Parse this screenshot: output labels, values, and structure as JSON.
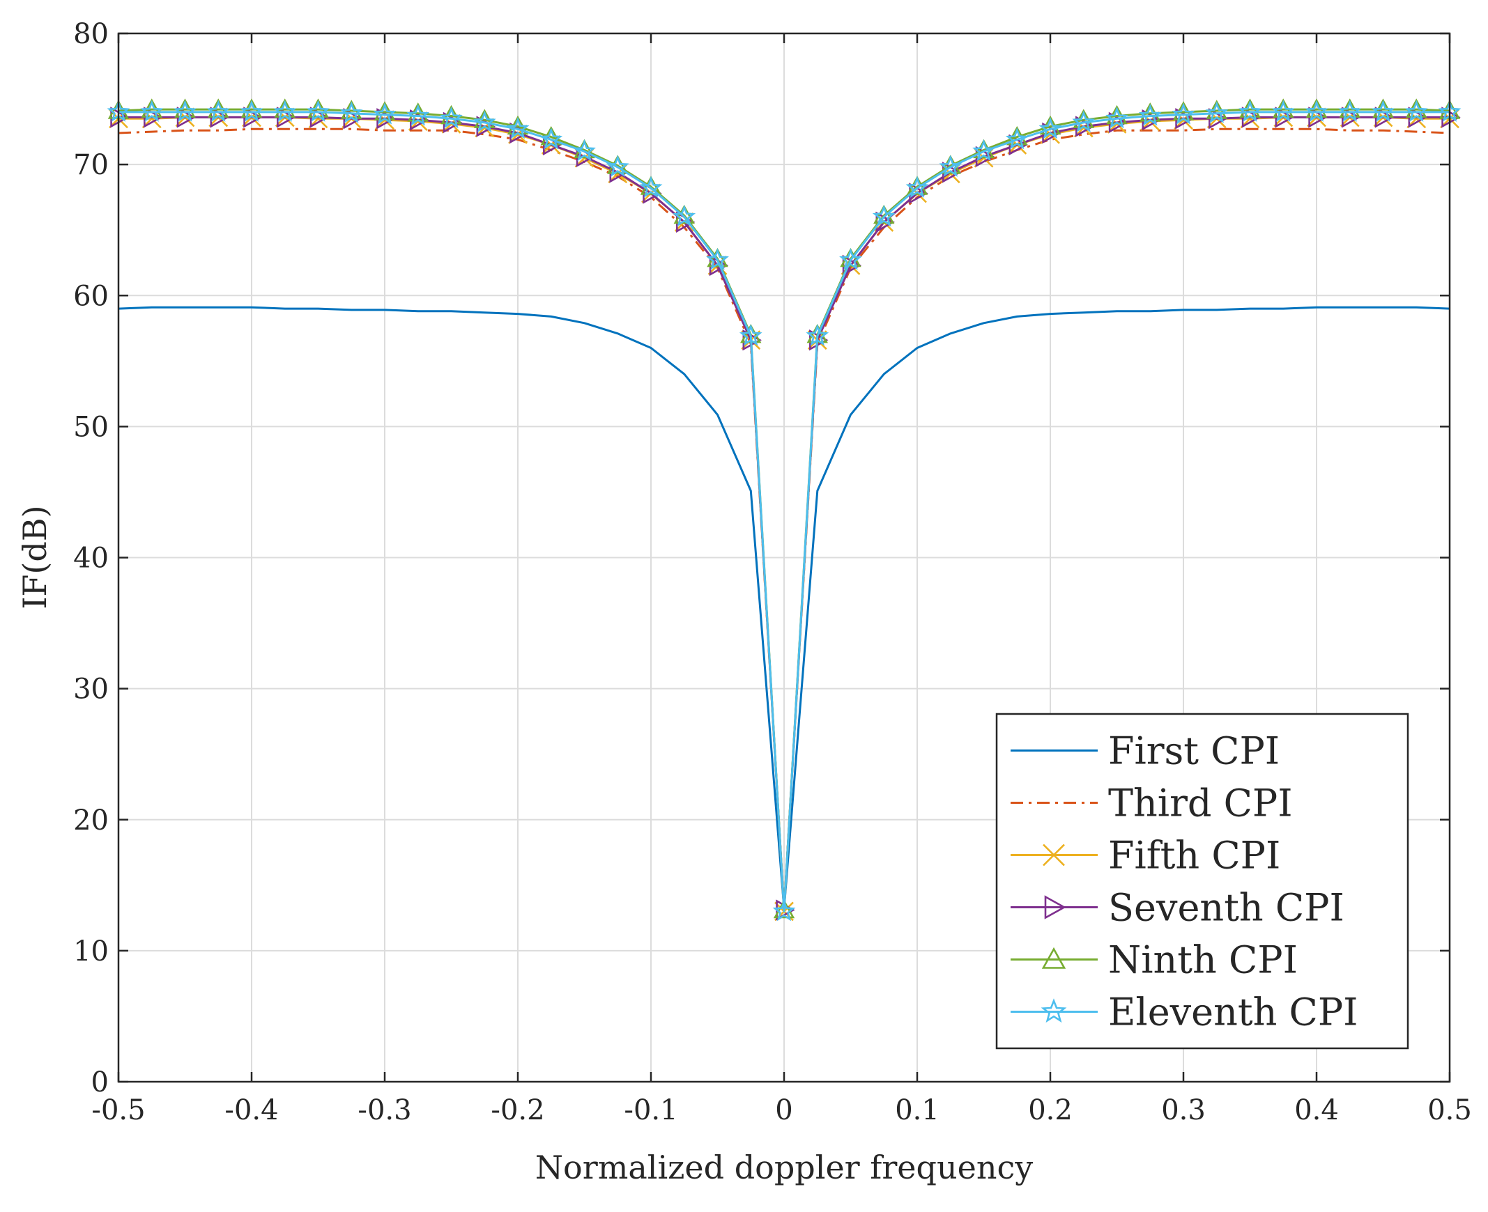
{
  "chart_data": {
    "type": "line",
    "xlabel": "Normalized doppler frequency",
    "ylabel": "IF(dB)",
    "xlim": [
      -0.5,
      0.5
    ],
    "ylim": [
      0,
      80
    ],
    "xticks": [
      -0.5,
      -0.4,
      -0.3,
      -0.2,
      -0.1,
      0,
      0.1,
      0.2,
      0.3,
      0.4,
      0.5
    ],
    "xtick_labels": [
      "-0.5",
      "-0.4",
      "-0.3",
      "-0.2",
      "-0.1",
      "0",
      "0.1",
      "0.2",
      "0.3",
      "0.4",
      "0.5"
    ],
    "yticks": [
      0,
      10,
      20,
      30,
      40,
      50,
      60,
      70,
      80
    ],
    "ytick_labels": [
      "0",
      "10",
      "20",
      "30",
      "40",
      "50",
      "60",
      "70",
      "80"
    ],
    "grid": true,
    "legend_position": "bottom-right",
    "x": [
      -0.5,
      -0.475,
      -0.45,
      -0.425,
      -0.4,
      -0.375,
      -0.35,
      -0.325,
      -0.3,
      -0.275,
      -0.25,
      -0.225,
      -0.2,
      -0.175,
      -0.15,
      -0.125,
      -0.1,
      -0.075,
      -0.05,
      -0.025,
      0,
      0.025,
      0.05,
      0.075,
      0.1,
      0.125,
      0.15,
      0.175,
      0.2,
      0.225,
      0.25,
      0.275,
      0.3,
      0.325,
      0.35,
      0.375,
      0.4,
      0.425,
      0.45,
      0.475,
      0.5
    ],
    "series": [
      {
        "name": "First CPI",
        "color": "#0072BD",
        "dash": "solid",
        "marker": "none",
        "values": [
          59,
          59.1,
          59.1,
          59.1,
          59.1,
          59.0,
          59.0,
          58.9,
          58.9,
          58.8,
          58.8,
          58.7,
          58.6,
          58.4,
          57.9,
          57.1,
          56.0,
          54.0,
          50.9,
          45.1,
          13.2,
          45.1,
          50.9,
          54.0,
          56.0,
          57.1,
          57.9,
          58.4,
          58.6,
          58.7,
          58.8,
          58.8,
          58.9,
          58.9,
          59.0,
          59.0,
          59.1,
          59.1,
          59.1,
          59.1,
          59
        ]
      },
      {
        "name": "Third CPI",
        "color": "#D95319",
        "dash": "dashdot",
        "marker": "none",
        "values": [
          72.4,
          72.5,
          72.6,
          72.6,
          72.7,
          72.7,
          72.7,
          72.7,
          72.6,
          72.6,
          72.6,
          72.3,
          71.9,
          71.1,
          70.2,
          69.1,
          67.5,
          65.2,
          62.1,
          56.3,
          13.1,
          56.3,
          62.1,
          65.2,
          67.5,
          69.1,
          70.2,
          71.1,
          71.9,
          72.3,
          72.6,
          72.6,
          72.6,
          72.7,
          72.7,
          72.7,
          72.7,
          72.6,
          72.6,
          72.5,
          72.4
        ]
      },
      {
        "name": "Fifth CPI",
        "color": "#EDB120",
        "dash": "solid",
        "marker": "x",
        "values": [
          73.5,
          73.5,
          73.6,
          73.6,
          73.6,
          73.6,
          73.5,
          73.5,
          73.4,
          73.3,
          73.1,
          72.8,
          72.3,
          71.5,
          70.5,
          69.3,
          67.8,
          65.6,
          62.3,
          56.6,
          13.0,
          56.6,
          62.3,
          65.6,
          67.8,
          69.3,
          70.5,
          71.5,
          72.3,
          72.8,
          73.1,
          73.3,
          73.4,
          73.5,
          73.5,
          73.6,
          73.6,
          73.6,
          73.6,
          73.5,
          73.5
        ]
      },
      {
        "name": "Seventh CPI",
        "color": "#7E2F8E",
        "dash": "solid",
        "marker": "triangle-right",
        "values": [
          73.6,
          73.6,
          73.6,
          73.6,
          73.6,
          73.6,
          73.6,
          73.5,
          73.5,
          73.4,
          73.2,
          72.9,
          72.4,
          71.5,
          70.6,
          69.4,
          67.8,
          65.6,
          62.3,
          56.6,
          13.1,
          56.6,
          62.3,
          65.6,
          67.8,
          69.4,
          70.6,
          71.5,
          72.4,
          72.9,
          73.2,
          73.4,
          73.5,
          73.5,
          73.6,
          73.6,
          73.6,
          73.6,
          73.6,
          73.6,
          73.6
        ]
      },
      {
        "name": "Ninth CPI",
        "color": "#77AC30",
        "dash": "solid",
        "marker": "triangle-up",
        "values": [
          74.1,
          74.2,
          74.2,
          74.2,
          74.2,
          74.2,
          74.2,
          74.1,
          74.0,
          73.9,
          73.7,
          73.4,
          72.9,
          72.1,
          71.1,
          69.9,
          68.3,
          66.1,
          62.8,
          57.0,
          13.1,
          57.0,
          62.8,
          66.1,
          68.3,
          69.9,
          71.1,
          72.1,
          72.9,
          73.4,
          73.7,
          73.9,
          74.0,
          74.1,
          74.2,
          74.2,
          74.2,
          74.2,
          74.2,
          74.2,
          74.1
        ]
      },
      {
        "name": "Eleventh CPI",
        "color": "#4DBEEE",
        "dash": "solid",
        "marker": "star",
        "values": [
          74.0,
          74.0,
          74.0,
          74.0,
          74.0,
          74.0,
          74.0,
          73.9,
          73.8,
          73.7,
          73.5,
          73.2,
          72.7,
          71.9,
          71.0,
          69.8,
          68.2,
          66.0,
          62.7,
          56.9,
          13.0,
          56.9,
          62.7,
          66.0,
          68.2,
          69.8,
          71.0,
          71.9,
          72.7,
          73.2,
          73.5,
          73.7,
          73.8,
          73.9,
          74.0,
          74.0,
          74.0,
          74.0,
          74.0,
          74.0,
          74.0
        ]
      }
    ]
  }
}
